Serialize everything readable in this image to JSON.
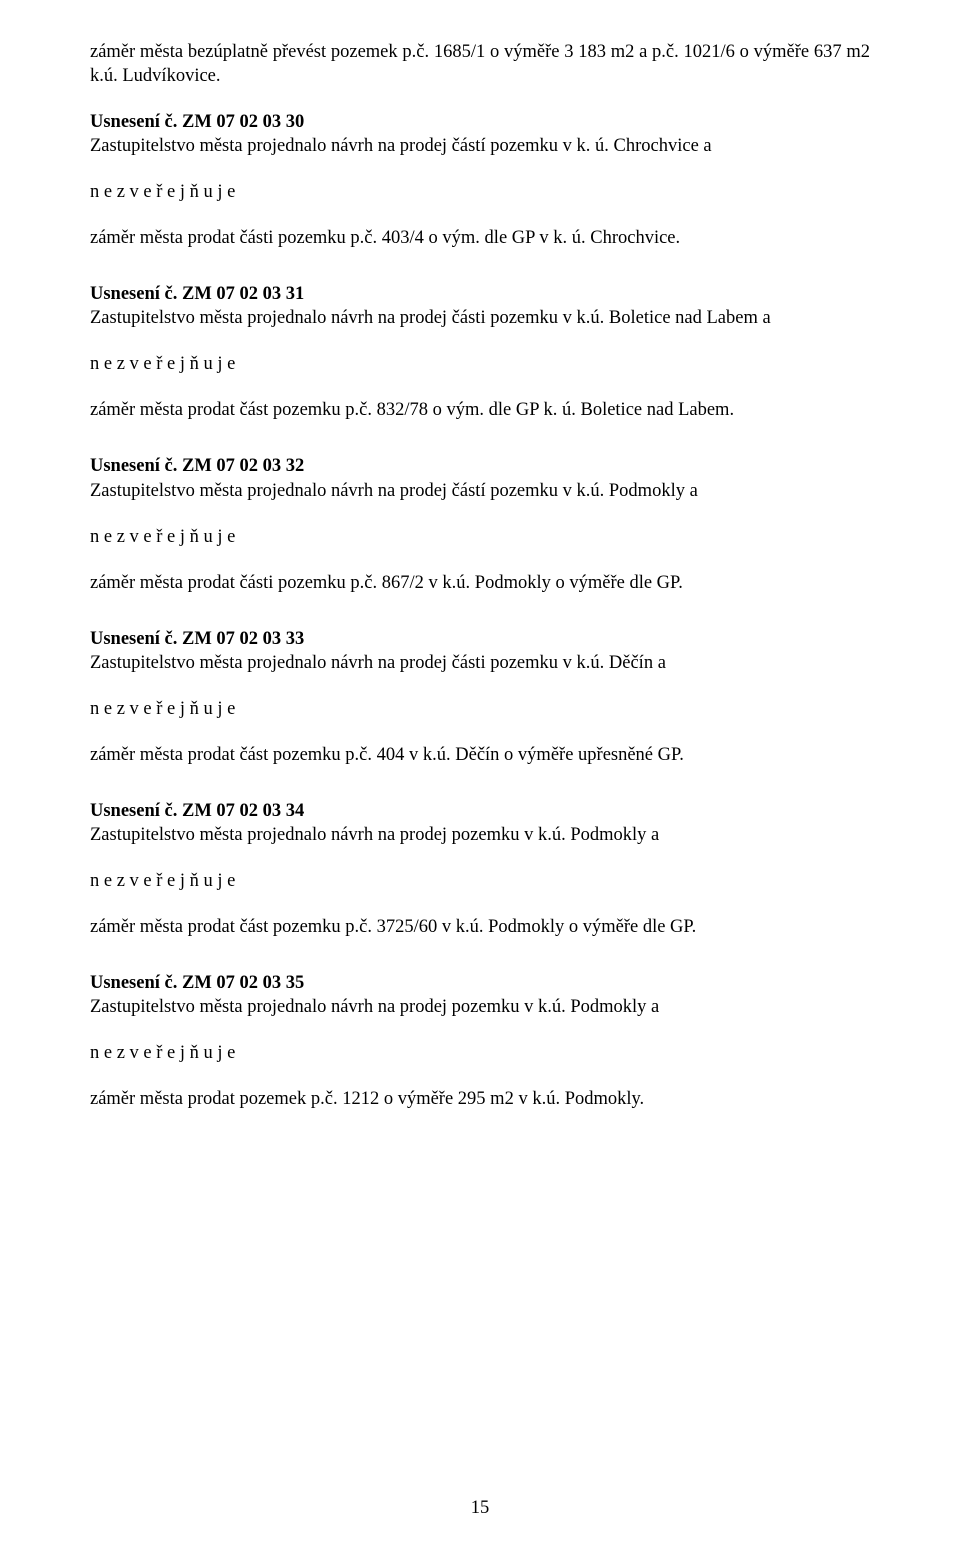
{
  "intro": {
    "text": "záměr města bezúplatně převést pozemek p.č. 1685/1 o výměře 3 183 m2 a p.č. 1021/6 o výměře 637 m2 k.ú. Ludvíkovice."
  },
  "resolutions": [
    {
      "heading": "Usnesení č. ZM 07 02 03 30",
      "line1": "Zastupitelstvo města projednalo návrh na prodej  částí pozemku v k. ú. Chrochvice a",
      "action": "n e z v e ř e j ň u j e",
      "result": "záměr města prodat části pozemku p.č. 403/4 o vým. dle GP v k. ú. Chrochvice."
    },
    {
      "heading": "Usnesení č. ZM 07 02 03 31",
      "line1": "Zastupitelstvo města projednalo návrh na prodej  části pozemku v k.ú. Boletice nad Labem a",
      "action": "n e z v e ř e j ň u j e",
      "result": "záměr města prodat část pozemku p.č. 832/78 o vým. dle GP  k. ú. Boletice nad Labem."
    },
    {
      "heading": "Usnesení č. ZM 07 02 03 32",
      "line1": "Zastupitelstvo města projednalo návrh na prodej částí pozemku v k.ú. Podmokly a",
      "action": "n e z v e ř e j ň u j e",
      "result": "záměr města prodat části pozemku p.č. 867/2 v k.ú. Podmokly  o výměře dle GP."
    },
    {
      "heading": "Usnesení č. ZM 07 02 03 33",
      "line1": "Zastupitelstvo města projednalo návrh na prodej části pozemku v k.ú. Děčín a",
      "action": "n e z v e ř e j ň u j e",
      "result": "záměr města prodat část pozemku p.č. 404 v k.ú. Děčín o výměře upřesněné GP."
    },
    {
      "heading": "Usnesení č. ZM 07 02 03 34",
      "line1": "Zastupitelstvo města projednalo návrh na prodej  pozemku v k.ú. Podmokly a",
      "action": "n e z v e ř e j ň u j e",
      "result": "záměr města prodat část pozemku p.č. 3725/60 v k.ú. Podmokly o výměře dle GP."
    },
    {
      "heading": "Usnesení č. ZM 07 02 03 35",
      "line1": "Zastupitelstvo města projednalo návrh na prodej pozemku v k.ú. Podmokly a",
      "action": "n e z v e ř e j ň u j e",
      "result": "záměr města prodat pozemek p.č. 1212 o výměře 295 m2 v k.ú. Podmokly."
    }
  ],
  "page_number": "15"
}
